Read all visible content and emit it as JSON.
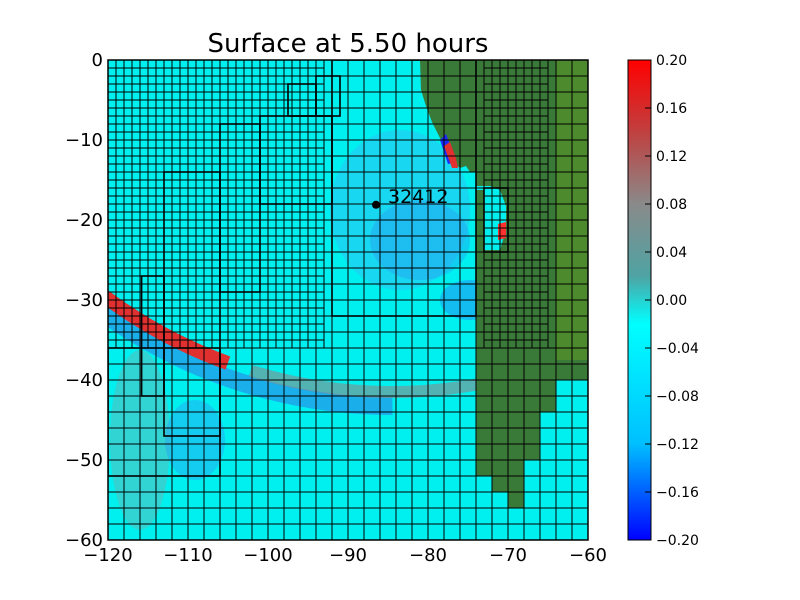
{
  "chart_data": {
    "type": "heatmap",
    "title": "Surface at 5.50 hours",
    "xlim": [
      -120,
      -60
    ],
    "ylim": [
      -60,
      0
    ],
    "xticks": [
      -120,
      -110,
      -100,
      -90,
      -80,
      -70,
      -60
    ],
    "yticks": [
      0,
      -10,
      -20,
      -30,
      -40,
      -50,
      -60
    ],
    "xtick_labels": [
      "−120",
      "−110",
      "−100",
      "−90",
      "−80",
      "−70",
      "−60"
    ],
    "ytick_labels": [
      "0",
      "−10",
      "−20",
      "−30",
      "−40",
      "−50",
      "−60"
    ],
    "colorbar": {
      "range": [
        -0.2,
        0.2
      ],
      "ticks": [
        0.2,
        0.16,
        0.12,
        0.08,
        0.04,
        0.0,
        -0.04,
        -0.08,
        -0.12,
        -0.16,
        -0.2
      ],
      "tick_labels": [
        "0.20",
        "0.16",
        "0.12",
        "0.08",
        "0.04",
        "0.00",
        "−0.04",
        "−0.08",
        "−0.12",
        "−0.16",
        "−0.20"
      ],
      "colors": [
        "#0000ff",
        "#00bfff",
        "#00ffff",
        "#4fa3a3",
        "#8a8a8a",
        "#c04040",
        "#ff0000"
      ]
    },
    "annotation": {
      "text": "32412",
      "x": -86.5,
      "y": -18.1
    },
    "land_color": "#3a7a38",
    "water_color": "#00f0f0",
    "refinement_grids": [
      {
        "x": [
          -120,
          -60
        ],
        "y": [
          -60,
          0
        ],
        "cell": 2
      },
      {
        "x": [
          -120,
          -93
        ],
        "y": [
          -36,
          0
        ],
        "cell": 1
      },
      {
        "x": [
          -73,
          -65
        ],
        "y": [
          -36,
          0
        ],
        "cell": 1
      }
    ],
    "refinement_boxes": [
      {
        "x": [
          -115.8,
          -113
        ],
        "y": [
          -42,
          -27
        ]
      },
      {
        "x": [
          -113,
          -106
        ],
        "y": [
          -47,
          -14
        ]
      },
      {
        "x": [
          -106,
          -101
        ],
        "y": [
          -29,
          -8
        ]
      },
      {
        "x": [
          -101,
          -92
        ],
        "y": [
          -18,
          -7
        ]
      },
      {
        "x": [
          -97.5,
          -94
        ],
        "y": [
          -7,
          -3
        ]
      },
      {
        "x": [
          -94,
          -91
        ],
        "y": [
          -7,
          -2
        ]
      },
      {
        "x": [
          -92,
          -74
        ],
        "y": [
          -32,
          0
        ]
      },
      {
        "x": [
          -73,
          -70
        ],
        "y": [
          -24,
          -16
        ]
      },
      {
        "x": [
          -120,
          -106
        ],
        "y": [
          -52,
          -36
        ]
      }
    ],
    "wave_front": {
      "center": [
        -84.5,
        18.5
      ],
      "radius": 60,
      "amplitude": 0.18,
      "start_angle_deg": 110,
      "end_angle_deg": 145
    }
  }
}
